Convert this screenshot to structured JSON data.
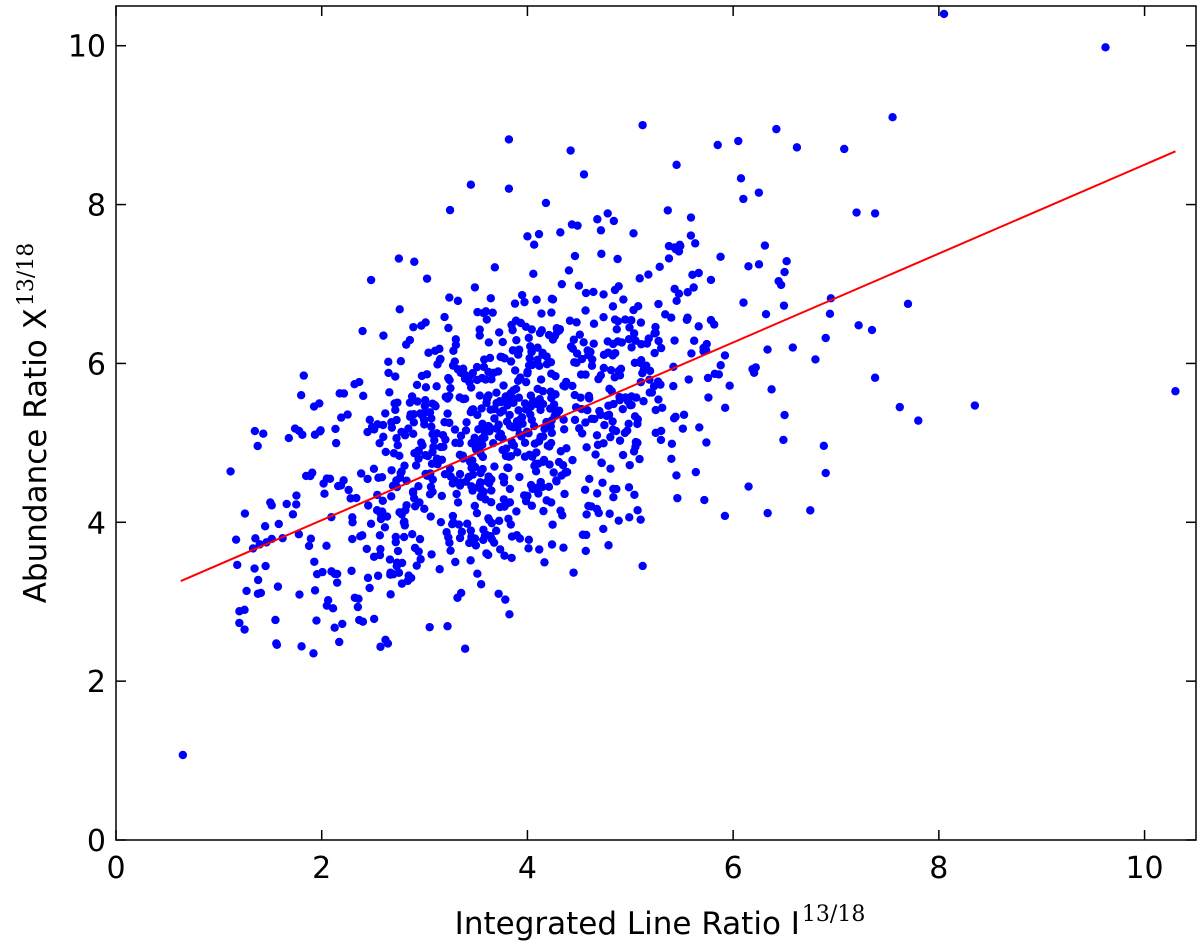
{
  "chart_data": {
    "type": "scatter",
    "xlabel": "Integrated Line Ratio I",
    "xlabel_sup": "13/18",
    "ylabel": "Abundance Ratio X",
    "ylabel_sup": "13/18",
    "xlim": [
      0,
      10.5
    ],
    "ylim": [
      0,
      10.5
    ],
    "x_ticks": [
      0,
      2,
      4,
      6,
      8,
      10
    ],
    "y_ticks": [
      0,
      2,
      4,
      6,
      8,
      10
    ],
    "grid": false,
    "colors": {
      "points": "#0000ff",
      "fit_line": "#ff0000",
      "axes": "#000000"
    },
    "fit_line": {
      "x": [
        0.63,
        10.3
      ],
      "y": [
        3.26,
        8.67
      ]
    },
    "points": {
      "marker": "circle",
      "count_approx": 1000,
      "x": [
        0.65,
        8.05,
        9.62,
        10.3,
        8.35,
        7.8,
        7.55,
        7.08,
        7.2,
        7.38,
        1.2,
        1.25,
        1.55,
        1.38,
        1.45,
        1.5,
        1.62,
        1.72,
        1.78,
        1.8,
        1.92,
        2.05,
        2.15,
        2.2,
        2.05,
        2.3,
        2.45,
        2.62,
        2.72,
        2.88,
        2.48,
        2.6,
        2.75,
        2.9,
        3.12,
        3.32,
        3.55,
        3.72,
        3.82,
        4.18,
        3.45,
        3.82,
        4.0,
        4.42,
        4.32,
        4.55,
        5.12,
        5.45,
        5.85,
        6.25,
        6.62,
        6.05,
        6.42,
        6.9,
        7.22,
        6.5,
        6.32,
        5.92,
        6.15,
        5.72,
        6.9,
        6.75,
        6.95,
        6.8,
        7.62,
        7.7,
        7.35,
        6.58,
        6.22,
        6.5,
        5.55,
        5.3,
        5.05,
        4.82,
        4.65,
        4.72,
        4.62,
        4.35,
        4.05,
        4.12,
        3.62,
        3.35,
        3.12,
        2.95,
        3.85,
        5.12,
        3.3,
        3.6,
        4.15,
        4.9
      ],
      "y": [
        1.07,
        10.4,
        9.98,
        5.65,
        5.47,
        5.28,
        9.1,
        8.7,
        7.9,
        5.82,
        2.88,
        2.65,
        2.77,
        3.1,
        3.95,
        4.25,
        3.8,
        4.1,
        5.15,
        5.6,
        2.35,
        2.95,
        3.35,
        2.72,
        4.55,
        4.0,
        3.3,
        2.52,
        3.75,
        3.85,
        7.05,
        6.35,
        7.32,
        7.28,
        5.12,
        3.05,
        3.22,
        3.1,
        8.82,
        8.02,
        8.25,
        8.2,
        7.6,
        8.68,
        7.65,
        8.38,
        9.0,
        8.5,
        8.75,
        8.15,
        8.72,
        8.8,
        8.95,
        6.32,
        6.48,
        7.15,
        6.62,
        4.08,
        4.45,
        4.28,
        4.62,
        4.15,
        6.82,
        6.05,
        5.45,
        6.75,
        6.42,
        6.2,
        5.95,
        5.35,
        6.55,
        5.15,
        4.95,
        5.65,
        5.3,
        4.75,
        4.2,
        5.72,
        4.42,
        5.55,
        4.05,
        4.5,
        4.8,
        4.25,
        3.82,
        3.45,
        5.0,
        5.2,
        5.65,
        5.85
      ]
    }
  }
}
